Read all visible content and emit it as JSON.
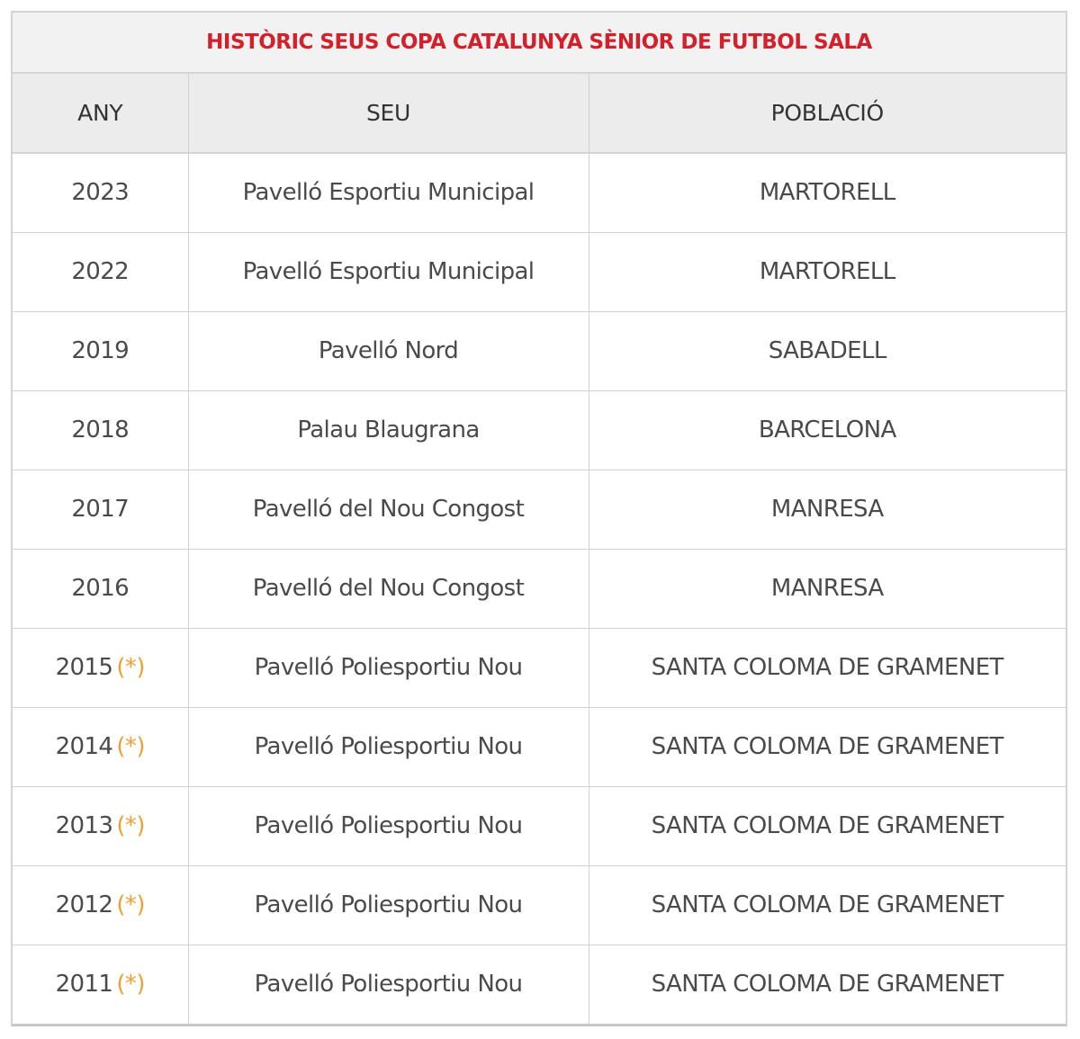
{
  "title": "HISTÒRIC SEUS COPA CATALUNYA SÈNIOR DE FUTBOL SALA",
  "headers": {
    "any": "ANY",
    "seu": "SEU",
    "poblacio": "POBLACIÓ"
  },
  "colors": {
    "title": "#d3202a",
    "asterisk": "#f0a030",
    "header_bg": "#ececec"
  },
  "rows": [
    {
      "any": "2023",
      "mark": "",
      "seu": "Pavelló Esportiu Municipal",
      "poblacio": "MARTORELL"
    },
    {
      "any": "2022",
      "mark": "",
      "seu": "Pavelló Esportiu Municipal",
      "poblacio": "MARTORELL"
    },
    {
      "any": "2019",
      "mark": "",
      "seu": "Pavelló Nord",
      "poblacio": "SABADELL"
    },
    {
      "any": "2018",
      "mark": "",
      "seu": "Palau Blaugrana",
      "poblacio": "BARCELONA"
    },
    {
      "any": "2017",
      "mark": "",
      "seu": "Pavelló del Nou Congost",
      "poblacio": "MANRESA"
    },
    {
      "any": "2016",
      "mark": "",
      "seu": "Pavelló del Nou Congost",
      "poblacio": "MANRESA"
    },
    {
      "any": "2015",
      "mark": "(*)",
      "seu": "Pavelló Poliesportiu Nou",
      "poblacio": "SANTA COLOMA DE GRAMENET"
    },
    {
      "any": "2014",
      "mark": "(*)",
      "seu": "Pavelló Poliesportiu Nou",
      "poblacio": "SANTA COLOMA DE GRAMENET"
    },
    {
      "any": "2013",
      "mark": "(*)",
      "seu": "Pavelló Poliesportiu Nou",
      "poblacio": "SANTA COLOMA DE GRAMENET"
    },
    {
      "any": "2012",
      "mark": "(*)",
      "seu": "Pavelló Poliesportiu Nou",
      "poblacio": "SANTA COLOMA DE GRAMENET"
    },
    {
      "any": "2011",
      "mark": "(*)",
      "seu": "Pavelló Poliesportiu Nou",
      "poblacio": "SANTA COLOMA DE GRAMENET"
    }
  ]
}
